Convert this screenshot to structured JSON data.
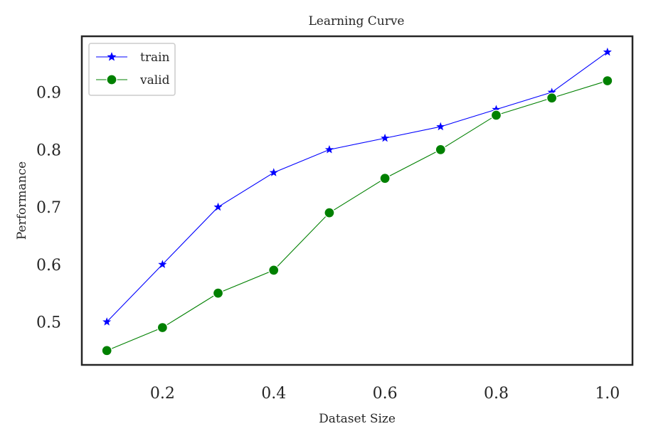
{
  "chart_data": {
    "type": "line",
    "title": "Learning Curve",
    "xlabel": "Dataset Size",
    "ylabel": "Performance",
    "x": [
      0.1,
      0.2,
      0.3,
      0.4,
      0.5,
      0.6,
      0.7,
      0.8,
      0.9,
      1.0
    ],
    "xlim": [
      0.055,
      1.045
    ],
    "ylim": [
      0.425,
      0.9975
    ],
    "xticks": [
      0.2,
      0.4,
      0.6,
      0.8,
      1.0
    ],
    "xtick_labels": [
      "0.2",
      "0.4",
      "0.6",
      "0.8",
      "1.0"
    ],
    "yticks": [
      0.5,
      0.6,
      0.7,
      0.8,
      0.9
    ],
    "ytick_labels": [
      "0.5",
      "0.6",
      "0.7",
      "0.8",
      "0.9"
    ],
    "grid": false,
    "legend_position": "top-left",
    "series": [
      {
        "name": "train",
        "values": [
          0.5,
          0.6,
          0.7,
          0.76,
          0.8,
          0.82,
          0.84,
          0.87,
          0.9,
          0.97
        ],
        "color": "#0000ff",
        "marker": "star"
      },
      {
        "name": "valid",
        "values": [
          0.45,
          0.49,
          0.55,
          0.59,
          0.69,
          0.75,
          0.8,
          0.86,
          0.89,
          0.92
        ],
        "color": "#008000",
        "marker": "circle"
      }
    ]
  }
}
